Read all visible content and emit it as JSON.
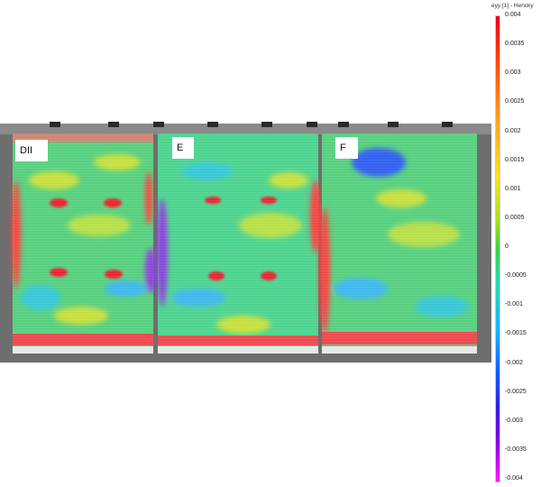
{
  "panels": [
    {
      "label": "DII"
    },
    {
      "label": "E"
    },
    {
      "label": "F"
    }
  ],
  "colorbar": {
    "title": "eyy [1] - Hencky",
    "ticks": [
      "0.004",
      "0.0035",
      "0.003",
      "0.0025",
      "0.002",
      "0.0015",
      "0.001",
      "0.0005",
      "0",
      "-0.0005",
      "-0.001",
      "-0.0015",
      "-0.002",
      "-0.0025",
      "-0.003",
      "-0.0035",
      "-0.004"
    ],
    "colors": [
      "#e8001a",
      "#ff5a0a",
      "#ffa020",
      "#ffe020",
      "#a8e020",
      "#3ad24a",
      "#28d8b8",
      "#1ab0ff",
      "#1060ff",
      "#3020e0",
      "#9000e0",
      "#ff18ff"
    ]
  }
}
